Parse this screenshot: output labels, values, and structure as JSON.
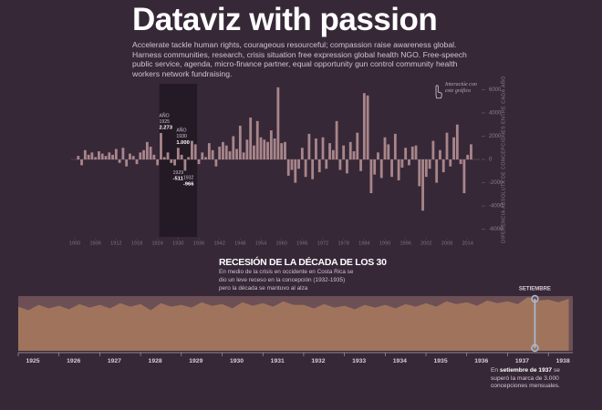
{
  "header": {
    "title": "Dataviz with passion",
    "description": "Accelerate tackle human rights, courageous resourceful; compassion raise awareness global. Harness communities, research, crisis situation free expression global health NGO. Free-speech public service, agenda, micro-finance partner, equal opportunity gun control community health workers network fundraising."
  },
  "chart_data": [
    {
      "type": "bar",
      "y_label": "DIFERENCIA ABSOLUTA DE CONCEPCIONES ENTRE CADA AÑO",
      "hint": "Interactúe con este gráfico",
      "color": "#a8868a",
      "highlight": [
        1925,
        1935
      ],
      "x": [
        1901,
        1902,
        1903,
        1904,
        1905,
        1906,
        1907,
        1908,
        1909,
        1910,
        1911,
        1912,
        1913,
        1914,
        1915,
        1916,
        1917,
        1918,
        1919,
        1920,
        1921,
        1922,
        1923,
        1924,
        1925,
        1926,
        1927,
        1928,
        1929,
        1930,
        1931,
        1932,
        1933,
        1934,
        1935,
        1936,
        1937,
        1938,
        1939,
        1940,
        1941,
        1942,
        1943,
        1944,
        1945,
        1946,
        1947,
        1948,
        1949,
        1950,
        1951,
        1952,
        1953,
        1954,
        1955,
        1956,
        1957,
        1958,
        1959,
        1960,
        1961,
        1962,
        1963,
        1964,
        1965,
        1966,
        1967,
        1968,
        1969,
        1970,
        1971,
        1972,
        1973,
        1974,
        1975,
        1976,
        1977,
        1978,
        1979,
        1980,
        1981,
        1982,
        1983,
        1984,
        1985,
        1986,
        1987,
        1988,
        1989,
        1990,
        1991,
        1992,
        1993,
        1994,
        1995,
        1996,
        1997,
        1998,
        1999,
        2000,
        2001,
        2002,
        2003,
        2004,
        2005,
        2006,
        2007,
        2008,
        2009,
        2010,
        2011,
        2012,
        2013,
        2014,
        2015
      ],
      "values": [
        300,
        -500,
        800,
        400,
        600,
        200,
        700,
        500,
        300,
        600,
        400,
        900,
        -300,
        1000,
        -600,
        500,
        300,
        -400,
        600,
        800,
        1500,
        1100,
        400,
        -500,
        2273,
        200,
        600,
        -300,
        -511,
        1000,
        400,
        -966,
        200,
        1600,
        1300,
        -400,
        600,
        200,
        1400,
        800,
        -600,
        1100,
        1500,
        1200,
        700,
        2000,
        900,
        2900,
        600,
        1700,
        3600,
        1200,
        3300,
        1900,
        1700,
        1500,
        2500,
        1800,
        6200,
        1400,
        1500,
        -1400,
        -900,
        -2000,
        -800,
        1000,
        -1500,
        2200,
        -1700,
        1800,
        -1100,
        1900,
        -800,
        1400,
        800,
        3300,
        -900,
        1200,
        -1200,
        1500,
        700,
        2300,
        -1000,
        5700,
        5500,
        -2900,
        -1300,
        600,
        -1600,
        1900,
        1300,
        -1500,
        2200,
        -1800,
        -700,
        1000,
        -500,
        1100,
        1200,
        -2300,
        -4400,
        -1500,
        -800,
        1600,
        -2000,
        800,
        -1100,
        2300,
        -600,
        1900,
        3000,
        -400,
        -2900,
        400,
        1300
      ],
      "xlim": [
        1900,
        2017
      ],
      "xticks": [
        1900,
        1906,
        1912,
        1918,
        1924,
        1930,
        1936,
        1942,
        1948,
        1954,
        1960,
        1966,
        1972,
        1978,
        1984,
        1990,
        1996,
        2002,
        2008,
        2014
      ],
      "ylim": [
        -6500,
        6500
      ],
      "yticks": [
        6000,
        4000,
        2000,
        0,
        -2000,
        -4000,
        -6000
      ],
      "annotations": [
        {
          "x": 1925,
          "lines": [
            "AÑO",
            "1925",
            "2.273"
          ]
        },
        {
          "x": 1930,
          "lines": [
            "AÑO",
            "1930",
            "1.000"
          ]
        },
        {
          "x": 1929,
          "lines": [
            "1929",
            "-511"
          ]
        },
        {
          "x": 1932,
          "lines": [
            "1932",
            "-966"
          ]
        }
      ]
    },
    {
      "type": "area",
      "title": "RECESIÓN DE LA DÉCADA DE LOS 30",
      "subtitle": "En medio de la crisis en occidente en Costa Rica se dio un leve receso en la concepción (1932-1935) pero la década se mantuvo al alza",
      "color": "#a0745c",
      "x": [
        1925,
        1925.25,
        1925.5,
        1925.75,
        1926,
        1926.25,
        1926.5,
        1926.75,
        1927,
        1927.25,
        1927.5,
        1927.75,
        1928,
        1928.25,
        1928.5,
        1928.75,
        1929,
        1929.25,
        1929.5,
        1929.75,
        1930,
        1930.25,
        1930.5,
        1930.75,
        1931,
        1931.25,
        1931.5,
        1931.75,
        1932,
        1932.25,
        1932.5,
        1932.75,
        1933,
        1933.25,
        1933.5,
        1933.75,
        1934,
        1934.25,
        1934.5,
        1934.75,
        1935,
        1935.25,
        1935.5,
        1935.75,
        1936,
        1936.25,
        1936.5,
        1936.75,
        1937,
        1937.25,
        1937.5,
        1937.75,
        1938,
        1938.25,
        1938.5
      ],
      "values": [
        2500,
        2300,
        2600,
        2400,
        2550,
        2350,
        2650,
        2450,
        2600,
        2400,
        2700,
        2500,
        2650,
        2300,
        2700,
        2500,
        2600,
        2450,
        2750,
        2550,
        2650,
        2400,
        2750,
        2550,
        2700,
        2500,
        2800,
        2600,
        2600,
        2400,
        2650,
        2450,
        2550,
        2350,
        2600,
        2450,
        2600,
        2400,
        2650,
        2500,
        2700,
        2500,
        2800,
        2650,
        2750,
        2550,
        2850,
        2700,
        2800,
        2650,
        3050,
        2850,
        2900,
        2750,
        2950
      ],
      "xlim": [
        1925,
        1938.6
      ],
      "ylim": [
        0,
        3100
      ],
      "xticks": [
        1925,
        1926,
        1927,
        1928,
        1929,
        1930,
        1931,
        1932,
        1933,
        1934,
        1935,
        1936,
        1937,
        1938
      ],
      "marker": {
        "x": 1937.67,
        "label": "SETIEMBRE"
      },
      "note": {
        "before": "En ",
        "bold": "setiembre de 1937",
        "after": "se superó la marca de 3.000 concepciones mensuales."
      }
    }
  ]
}
